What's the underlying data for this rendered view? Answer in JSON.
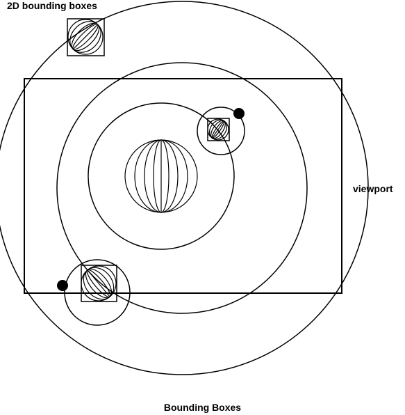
{
  "diagram": {
    "title": "2D bounding boxes",
    "viewport_label": "viewport",
    "caption": "Bounding Boxes"
  },
  "colors": {
    "stroke": "#000000",
    "background": "#ffffff"
  }
}
